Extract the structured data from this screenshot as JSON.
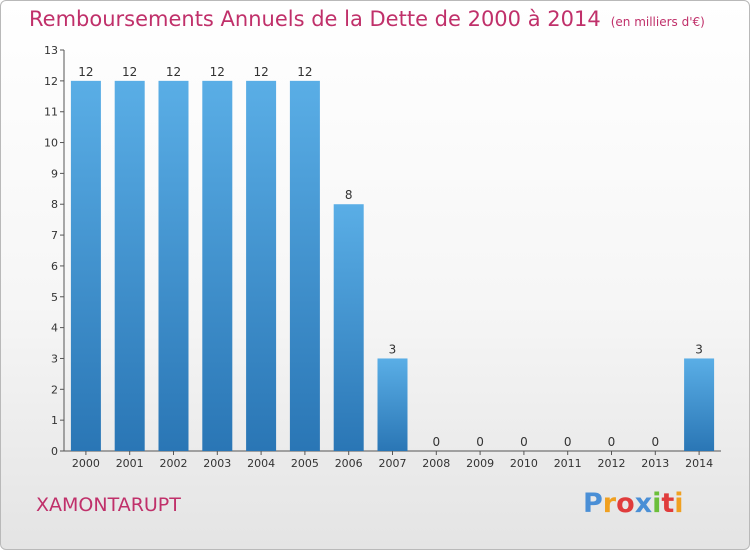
{
  "header": {
    "title": "Remboursements Annuels de la Dette de 2000 à 2014",
    "unit": "(en milliers d'€)"
  },
  "footer": {
    "commune": "XAMONTARUPT",
    "logo_letters": [
      "P",
      "r",
      "o",
      "x",
      "i",
      "t",
      "i"
    ]
  },
  "colors": {
    "title": "#c0306a",
    "bar_top": "#5aaee6",
    "bar_bottom": "#2a76b5",
    "logo": [
      "#4a8fd6",
      "#f0a020",
      "#e03c3c",
      "#4a8fd6",
      "#6cbf3a",
      "#e03c3c",
      "#f0a020"
    ]
  },
  "chart_data": {
    "type": "bar",
    "title": "Remboursements Annuels de la Dette de 2000 à 2014",
    "ylabel": "",
    "xlabel": "",
    "ylim": [
      0,
      13
    ],
    "yticks": [
      0,
      1,
      2,
      3,
      4,
      5,
      6,
      7,
      8,
      9,
      10,
      11,
      12,
      13
    ],
    "grid": false,
    "categories": [
      "2000",
      "2001",
      "2002",
      "2003",
      "2004",
      "2005",
      "2006",
      "2007",
      "2008",
      "2009",
      "2010",
      "2011",
      "2012",
      "2013",
      "2014"
    ],
    "values": [
      12,
      12,
      12,
      12,
      12,
      12,
      8,
      3,
      0,
      0,
      0,
      0,
      0,
      0,
      3
    ]
  }
}
